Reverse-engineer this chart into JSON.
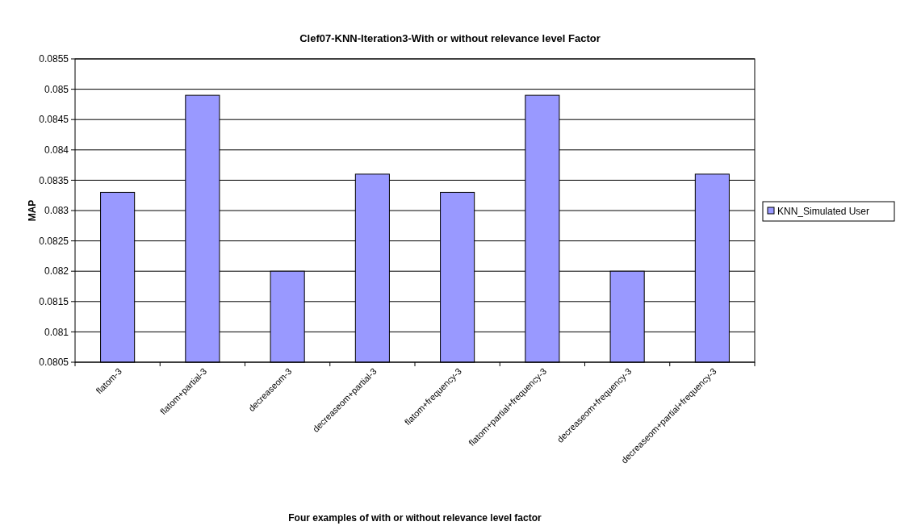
{
  "chart_data": {
    "type": "bar",
    "title": "Clef07-KNN-Iteration3-With or without relevance level Factor",
    "xlabel": "Four examples of with or without relevance level factor",
    "ylabel": "MAP",
    "categories": [
      "flatom-3",
      "flatom+partial-3",
      "decreaseom-3",
      "decreaseom+partial-3",
      "flatom+frequency-3",
      "flatom+partial+frequency-3",
      "decreaseom+frequency-3",
      "decreaseom+partial+frequency-3"
    ],
    "series": [
      {
        "name": "KNN_Simulated User",
        "color": "#9999ff",
        "values": [
          0.0833,
          0.0849,
          0.082,
          0.0836,
          0.0833,
          0.0849,
          0.082,
          0.0836
        ]
      }
    ],
    "ylim": [
      0.0805,
      0.0855
    ],
    "yticks": [
      0.0805,
      0.081,
      0.0815,
      0.082,
      0.0825,
      0.083,
      0.0835,
      0.084,
      0.0845,
      0.085,
      0.0855
    ],
    "grid": "y",
    "legend": "right"
  }
}
